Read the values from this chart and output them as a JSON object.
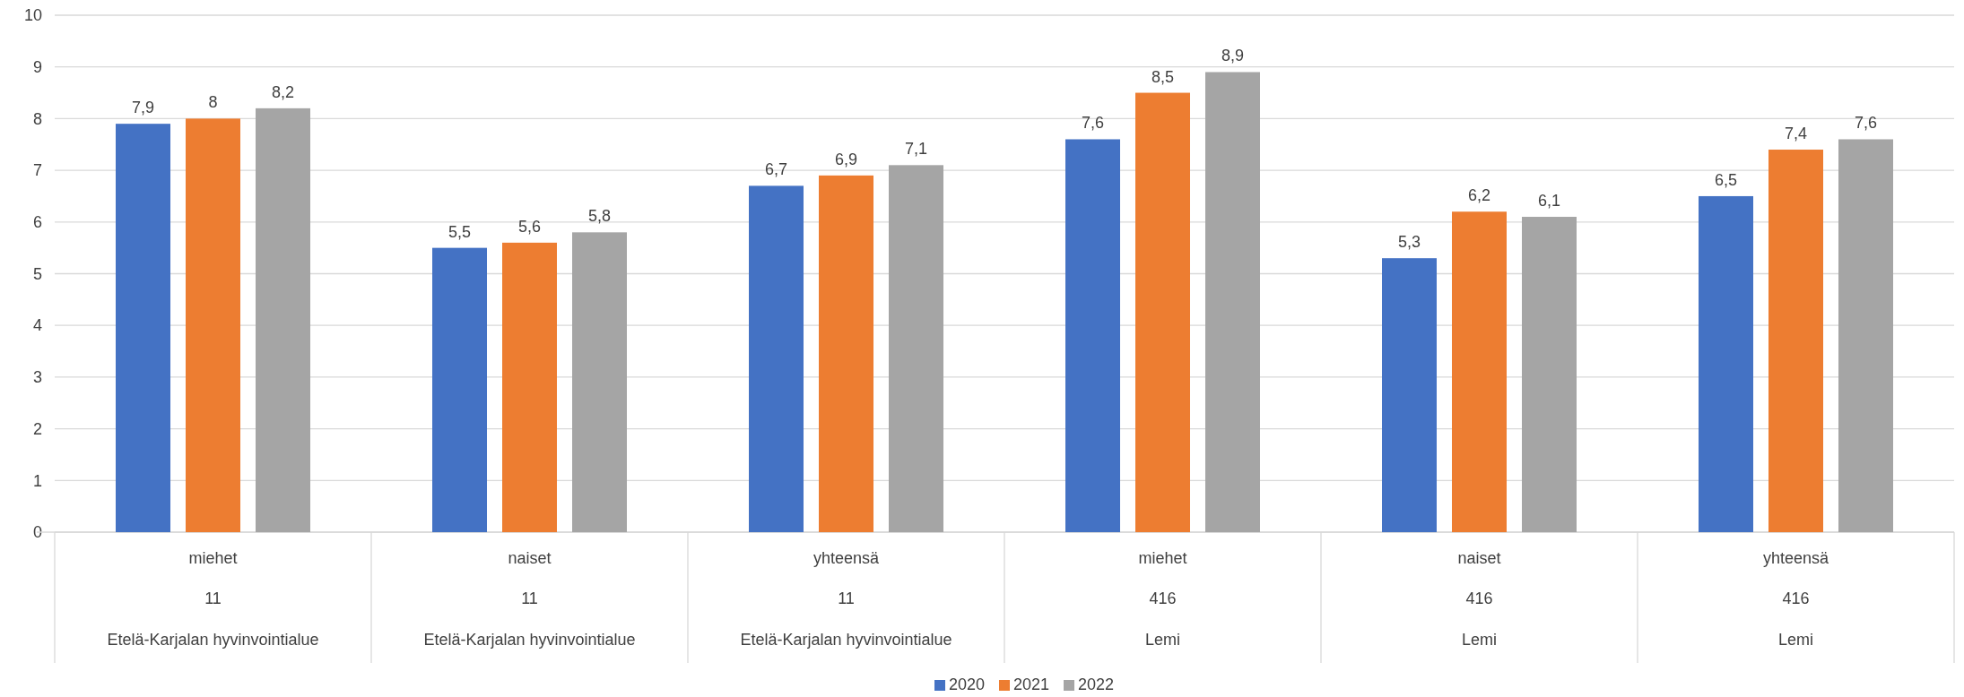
{
  "chart_data": {
    "type": "bar",
    "categories": [
      "miehet\n11\nEtelä-Karjalan hyvinvointialue",
      "naiset\n11\nEtelä-Karjalan hyvinvointialue",
      "yhteensä\n11\nEtelä-Karjalan hyvinvointialue",
      "miehet\n416\nLemi",
      "naiset\n416\nLemi",
      "yhteensä\n416\nLemi"
    ],
    "series": [
      {
        "name": "2020",
        "color": "#4472c4",
        "values": [
          7.9,
          5.5,
          6.7,
          7.6,
          5.3,
          6.5
        ],
        "value_labels": [
          "7,9",
          "5,5",
          "6,7",
          "7,6",
          "5,3",
          "6,5"
        ]
      },
      {
        "name": "2021",
        "color": "#ed7d31",
        "values": [
          8,
          5.6,
          6.9,
          8.5,
          6.2,
          7.4
        ],
        "value_labels": [
          "8",
          "5,6",
          "6,9",
          "8,5",
          "6,2",
          "7,4"
        ]
      },
      {
        "name": "2022",
        "color": "#a5a5a5",
        "values": [
          8.2,
          5.8,
          7.1,
          8.9,
          6.1,
          7.6
        ],
        "value_labels": [
          "8,2",
          "5,8",
          "7,1",
          "8,9",
          "6,1",
          "7,6"
        ]
      }
    ],
    "ylim": [
      0,
      10
    ],
    "yticks": [
      0,
      1,
      2,
      3,
      4,
      5,
      6,
      7,
      8,
      9,
      10
    ],
    "grid": "y",
    "legend": "bottom"
  }
}
